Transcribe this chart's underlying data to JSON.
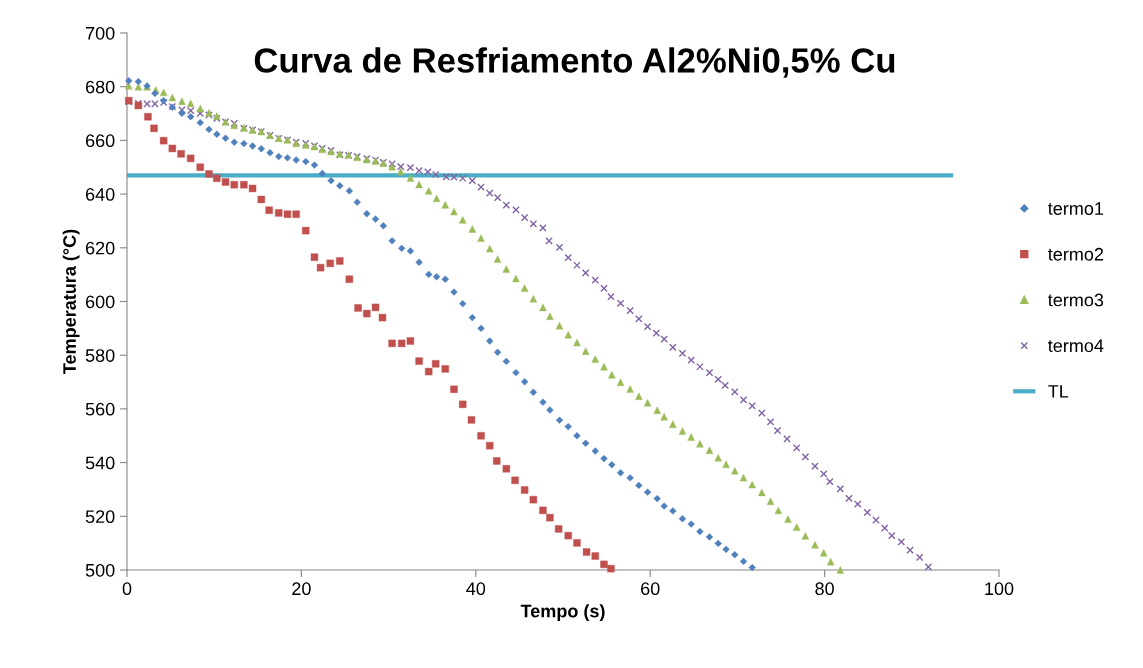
{
  "chart_data": {
    "type": "scatter",
    "title": "Curva de Resfriamento Al2%Ni0,5% Cu",
    "xlabel": "Tempo (s)",
    "ylabel": "Temperatura (°C)",
    "xlim": [
      0,
      100
    ],
    "ylim": [
      500,
      700
    ],
    "xticks": [
      0,
      20,
      40,
      60,
      80,
      100
    ],
    "yticks": [
      500,
      520,
      540,
      560,
      580,
      600,
      620,
      640,
      660,
      680,
      700
    ],
    "grid": false,
    "legend": "right",
    "series": [
      {
        "name": "termo1",
        "color": "#4f81bd",
        "marker": "diamond",
        "x": [
          0.2,
          1.3,
          2.3,
          3.2,
          4.2,
          5.2,
          6.3,
          7.3,
          8.4,
          9.4,
          10.3,
          11.3,
          12.3,
          13.4,
          14.4,
          15.4,
          16.4,
          17.4,
          18.4,
          19.4,
          20.5,
          21.5,
          22.4,
          23.4,
          24.4,
          25.5,
          26.4,
          27.5,
          28.5,
          29.4,
          30.4,
          31.5,
          32.5,
          33.5,
          34.6,
          35.5,
          36.5,
          37.5,
          38.5,
          39.6,
          40.6,
          41.6,
          42.5,
          43.5,
          44.6,
          45.6,
          46.6,
          47.7,
          48.5,
          49.6,
          50.6,
          51.6,
          52.6,
          53.7,
          54.7,
          55.6,
          56.6,
          57.7,
          58.7,
          59.7,
          60.8,
          61.6,
          62.6,
          63.7,
          64.7,
          65.7,
          66.8,
          67.8,
          68.7,
          69.7,
          70.7,
          71.7
        ],
        "values": [
          682.2,
          681.9,
          680.3,
          677.5,
          674.8,
          672.3,
          670.1,
          668.8,
          666.6,
          664.1,
          662.3,
          660.8,
          659.3,
          658.8,
          657.9,
          656.9,
          655.4,
          654,
          653.5,
          652.7,
          652.1,
          650.8,
          647.7,
          645,
          643.1,
          641.2,
          637,
          632.7,
          630.7,
          628.2,
          622.6,
          619.8,
          618.8,
          614.6,
          610.1,
          609.2,
          608.3,
          603.5,
          599.2,
          594,
          590,
          585.3,
          581.1,
          577.7,
          573.5,
          570.1,
          566.2,
          562.5,
          559.6,
          555.8,
          553.4,
          550,
          547.2,
          544.3,
          541.5,
          539.2,
          536.2,
          534.3,
          531.5,
          529,
          526.6,
          523.8,
          522,
          519.1,
          517.1,
          514.3,
          512.3,
          509.9,
          507.7,
          505.7,
          503.2,
          500.9
        ]
      },
      {
        "name": "termo2",
        "color": "#c0504d",
        "marker": "square",
        "x": [
          0.2,
          1.3,
          2.4,
          3.1,
          4.2,
          5.2,
          6.2,
          7.3,
          8.4,
          9.4,
          10.3,
          11.3,
          12.3,
          13.4,
          14.4,
          15.4,
          16.3,
          17.4,
          18.4,
          19.4,
          20.5,
          21.5,
          22.2,
          23.3,
          24.4,
          25.5,
          26.5,
          27.5,
          28.5,
          29.3,
          30.4,
          31.5,
          32.5,
          33.5,
          34.6,
          35.4,
          36.5,
          37.5,
          38.5,
          39.5,
          40.6,
          41.6,
          42.4,
          43.5,
          44.5,
          45.6,
          46.6,
          47.7,
          48.5,
          49.5,
          50.6,
          51.6,
          52.7,
          53.7,
          54.7,
          55.5
        ],
        "values": [
          674.8,
          673,
          668.8,
          664.5,
          659.9,
          657,
          655,
          653.3,
          650,
          647.5,
          645.9,
          644.5,
          643.5,
          643.5,
          642.1,
          638,
          634,
          633,
          632.5,
          632.5,
          626.4,
          616.5,
          612.6,
          614.2,
          615.1,
          608.3,
          597.6,
          595.5,
          597.8,
          594,
          584.4,
          584.4,
          585.3,
          577.8,
          573.9,
          576.8,
          574.9,
          567.3,
          561.7,
          555.9,
          550,
          546.3,
          540.6,
          537.7,
          533.4,
          529.8,
          526.2,
          522.2,
          519.5,
          515.3,
          512.8,
          510.1,
          506.7,
          505.2,
          502.1,
          500.5
        ]
      },
      {
        "name": "termo3",
        "color": "#9bbb59",
        "marker": "triangle",
        "x": [
          0.2,
          1.3,
          2.3,
          3.3,
          4.2,
          5.2,
          6.3,
          7.3,
          8.4,
          9.4,
          10.3,
          11.3,
          12.3,
          13.4,
          14.4,
          15.4,
          16.4,
          17.4,
          18.4,
          19.4,
          20.5,
          21.5,
          22.4,
          23.4,
          24.4,
          25.4,
          26.4,
          27.5,
          28.5,
          29.4,
          30.4,
          31.4,
          32.5,
          33.5,
          34.6,
          35.5,
          36.5,
          37.5,
          38.5,
          39.6,
          40.6,
          41.6,
          42.5,
          43.5,
          44.6,
          45.6,
          46.6,
          47.7,
          48.5,
          49.6,
          50.6,
          51.6,
          52.6,
          53.7,
          54.7,
          55.6,
          56.6,
          57.7,
          58.7,
          59.7,
          60.8,
          61.6,
          62.6,
          63.7,
          64.7,
          65.7,
          66.8,
          67.8,
          68.7,
          69.7,
          70.7,
          71.7,
          72.8,
          73.8,
          74.7,
          75.8,
          76.8,
          77.8,
          78.9,
          79.9,
          80.7,
          81.8
        ],
        "values": [
          680.3,
          680,
          680,
          678.8,
          677.9,
          676,
          674.6,
          673.8,
          671.9,
          670.3,
          669.1,
          666.9,
          665.6,
          664.7,
          663.9,
          663.3,
          661.9,
          660.8,
          660.2,
          658.9,
          658.3,
          657.7,
          656.7,
          655.9,
          655,
          654.6,
          653.7,
          652.9,
          652.3,
          651.5,
          650.2,
          648.4,
          646,
          643.6,
          641.2,
          638.4,
          636,
          633.5,
          630.4,
          627,
          623.6,
          619.7,
          615.8,
          612.1,
          608.6,
          605,
          601,
          597.8,
          594.5,
          591,
          587.6,
          584.7,
          581.5,
          578.6,
          575.7,
          572.7,
          569.9,
          567.4,
          564.7,
          562.3,
          559.5,
          557.1,
          554.3,
          551.8,
          549.5,
          547,
          544.6,
          541.8,
          539.4,
          537,
          534.4,
          531.8,
          528.9,
          525.6,
          522.2,
          519,
          516,
          512.7,
          509.4,
          506.4,
          503.1,
          500
        ]
      },
      {
        "name": "termo4",
        "color": "#8064a2",
        "marker": "cross",
        "x": [
          0.2,
          1.3,
          2.3,
          3.2,
          4.2,
          5.2,
          6.3,
          7.3,
          8.4,
          9.4,
          10.3,
          11.3,
          12.3,
          13.4,
          14.4,
          15.4,
          16.4,
          17.4,
          18.4,
          19.4,
          20.5,
          21.5,
          22.4,
          23.4,
          24.4,
          25.4,
          26.4,
          27.5,
          28.5,
          29.4,
          30.4,
          31.4,
          32.5,
          33.5,
          34.5,
          35.4,
          36.6,
          37.5,
          38.5,
          39.6,
          40.6,
          41.6,
          42.5,
          43.5,
          44.6,
          45.6,
          46.6,
          47.7,
          48.4,
          49.6,
          50.6,
          51.6,
          52.6,
          53.7,
          54.7,
          55.5,
          56.6,
          57.7,
          58.7,
          59.7,
          60.7,
          61.6,
          62.6,
          63.7,
          64.7,
          65.7,
          66.8,
          67.8,
          68.6,
          69.7,
          70.7,
          71.7,
          72.8,
          73.8,
          74.6,
          75.7,
          76.8,
          77.8,
          78.9,
          79.9,
          80.6,
          81.8,
          82.8,
          83.8,
          84.9,
          85.9,
          86.9,
          87.7,
          88.8,
          89.8,
          90.9,
          91.9
        ],
        "values": [
          674.4,
          673.8,
          673.6,
          673.6,
          674.2,
          672.6,
          671.4,
          671.1,
          670.1,
          669.5,
          668.2,
          666.9,
          666.3,
          664.5,
          663.9,
          663.3,
          661.9,
          660.8,
          660.2,
          659.4,
          658.9,
          658,
          657,
          656.3,
          654.6,
          654.4,
          654,
          653.2,
          652.7,
          651.8,
          651.3,
          650.2,
          649.9,
          648.7,
          648.3,
          647.3,
          646.4,
          646.3,
          645.9,
          645,
          642.6,
          640.4,
          638.7,
          635.9,
          634.1,
          631.2,
          628.9,
          627.4,
          622.6,
          620.2,
          616.3,
          613.5,
          610.7,
          608,
          604.9,
          601.8,
          599.3,
          596.6,
          593.5,
          590.6,
          588.2,
          586,
          582.9,
          580.7,
          578.2,
          575.7,
          573.5,
          571,
          568.8,
          566.3,
          563.4,
          561.1,
          558.4,
          555.2,
          551.9,
          548.8,
          545.5,
          542.1,
          538.7,
          535.8,
          532.9,
          530.2,
          526.7,
          524.5,
          521.5,
          518.6,
          515.6,
          512.8,
          510.5,
          507.4,
          504.7,
          501.2
        ]
      },
      {
        "name": "TL",
        "color": "#4bacc6",
        "type": "line",
        "marker": "none",
        "line_style": "solid",
        "x": [
          0,
          94.5
        ],
        "values": [
          647,
          647
        ]
      }
    ]
  }
}
